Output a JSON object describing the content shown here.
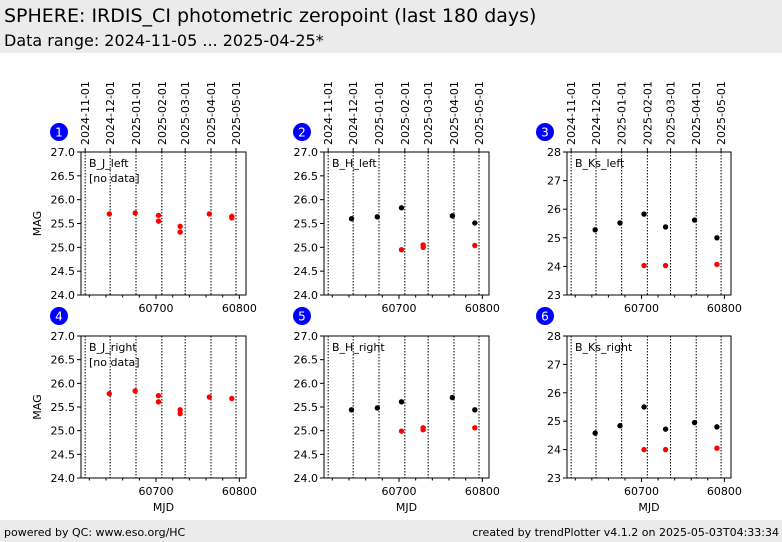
{
  "header": {
    "title": "SPHERE: IRDIS_CI photometric zeropoint (last 180 days)",
    "subtitle": "Data range: 2024-11-05 ... 2025-04-25*"
  },
  "footer": {
    "left": "powered by QC: www.eso.org/HC",
    "right": "created by trendPlotter v4.1.2 on 2025-05-03T04:33:34"
  },
  "colors": {
    "black": "#000000",
    "red": "#ff0000",
    "badge": "#0000ff",
    "background": "#ffffff",
    "band": "#ebebeb"
  },
  "chart_data": [
    {
      "number": "1",
      "type": "scatter",
      "label": "B_J_left",
      "note": "[no data]",
      "ylabel": "MAG",
      "xlabel": "",
      "ylim": [
        24.0,
        27.0
      ],
      "yticks": [
        "24.0",
        "24.5",
        "25.0",
        "25.5",
        "26.0",
        "26.5",
        "27.0"
      ],
      "xlim": [
        60610,
        60808
      ],
      "xticks": [
        60700,
        60800
      ],
      "date_ticks": [
        "2024-11-01",
        "2024-12-01",
        "2025-01-01",
        "2025-02-01",
        "2025-03-01",
        "2025-04-01",
        "2025-05-01"
      ],
      "series": [
        {
          "color": "red",
          "x": [
            60644,
            60675,
            60703,
            60703,
            60729,
            60729,
            60764,
            60791,
            60791
          ],
          "y": [
            25.7,
            25.72,
            25.67,
            25.55,
            25.44,
            25.32,
            25.7,
            25.65,
            25.62
          ]
        }
      ]
    },
    {
      "number": "2",
      "type": "scatter",
      "label": "B_H_left",
      "note": "",
      "ylabel": "",
      "xlabel": "",
      "ylim": [
        24.0,
        27.0
      ],
      "yticks": [
        "24.0",
        "24.5",
        "25.0",
        "25.5",
        "26.0",
        "26.5",
        "27.0"
      ],
      "xlim": [
        60610,
        60808
      ],
      "xticks": [
        60700,
        60800
      ],
      "date_ticks": [
        "2024-11-01",
        "2024-12-01",
        "2025-01-01",
        "2025-02-01",
        "2025-03-01",
        "2025-04-01",
        "2025-05-01"
      ],
      "series": [
        {
          "color": "black",
          "x": [
            60643,
            60674,
            60703,
            60764,
            60791
          ],
          "y": [
            25.6,
            25.64,
            25.83,
            25.66,
            25.51
          ]
        },
        {
          "color": "red",
          "x": [
            60703,
            60729,
            60729,
            60791
          ],
          "y": [
            24.95,
            25.05,
            25.0,
            25.04
          ]
        }
      ]
    },
    {
      "number": "3",
      "type": "scatter",
      "label": "B_Ks_left",
      "note": "",
      "ylabel": "",
      "xlabel": "",
      "ylim": [
        23,
        28
      ],
      "yticks": [
        "23",
        "24",
        "25",
        "26",
        "27",
        "28"
      ],
      "xlim": [
        60610,
        60808
      ],
      "xticks": [
        60700,
        60800
      ],
      "date_ticks": [
        "2024-11-01",
        "2024-12-01",
        "2025-01-01",
        "2025-02-01",
        "2025-03-01",
        "2025-04-01",
        "2025-05-01"
      ],
      "series": [
        {
          "color": "black",
          "x": [
            60644,
            60674,
            60703,
            60729,
            60764,
            60791
          ],
          "y": [
            25.28,
            25.52,
            25.83,
            25.38,
            25.62,
            25.0
          ]
        },
        {
          "color": "red",
          "x": [
            60703,
            60729,
            60791
          ],
          "y": [
            24.03,
            24.03,
            24.07
          ]
        }
      ]
    },
    {
      "number": "4",
      "type": "scatter",
      "label": "B_J_right",
      "note": "[no data]",
      "ylabel": "MAG",
      "xlabel": "MJD",
      "ylim": [
        24.0,
        27.0
      ],
      "yticks": [
        "24.0",
        "24.5",
        "25.0",
        "25.5",
        "26.0",
        "26.5",
        "27.0"
      ],
      "xlim": [
        60610,
        60808
      ],
      "xticks": [
        60700,
        60800
      ],
      "series": [
        {
          "color": "red",
          "x": [
            60644,
            60675,
            60703,
            60703,
            60729,
            60729,
            60764,
            60791
          ],
          "y": [
            25.78,
            25.84,
            25.74,
            25.61,
            25.44,
            25.36,
            25.71,
            25.68
          ]
        }
      ]
    },
    {
      "number": "5",
      "type": "scatter",
      "label": "B_H_right",
      "note": "",
      "ylabel": "",
      "xlabel": "MJD",
      "ylim": [
        24.0,
        27.0
      ],
      "yticks": [
        "24.0",
        "24.5",
        "25.0",
        "25.5",
        "26.0",
        "26.5",
        "27.0"
      ],
      "xlim": [
        60610,
        60808
      ],
      "xticks": [
        60700,
        60800
      ],
      "series": [
        {
          "color": "black",
          "x": [
            60643,
            60674,
            60703,
            60764,
            60791
          ],
          "y": [
            25.44,
            25.48,
            25.61,
            25.7,
            25.44
          ]
        },
        {
          "color": "red",
          "x": [
            60703,
            60729,
            60729,
            60791
          ],
          "y": [
            24.99,
            25.06,
            25.02,
            25.06
          ]
        }
      ]
    },
    {
      "number": "6",
      "type": "scatter",
      "label": "B_Ks_right",
      "note": "",
      "ylabel": "",
      "xlabel": "MJD",
      "ylim": [
        23,
        28
      ],
      "yticks": [
        "23",
        "24",
        "25",
        "26",
        "27",
        "28"
      ],
      "xlim": [
        60610,
        60808
      ],
      "xticks": [
        60700,
        60800
      ],
      "series": [
        {
          "color": "black",
          "x": [
            60644,
            60674,
            60703,
            60729,
            60764,
            60791
          ],
          "y": [
            24.58,
            24.84,
            25.5,
            24.72,
            24.95,
            24.8
          ]
        },
        {
          "color": "red",
          "x": [
            60703,
            60729,
            60791
          ],
          "y": [
            24.0,
            24.0,
            24.05
          ]
        }
      ]
    }
  ]
}
